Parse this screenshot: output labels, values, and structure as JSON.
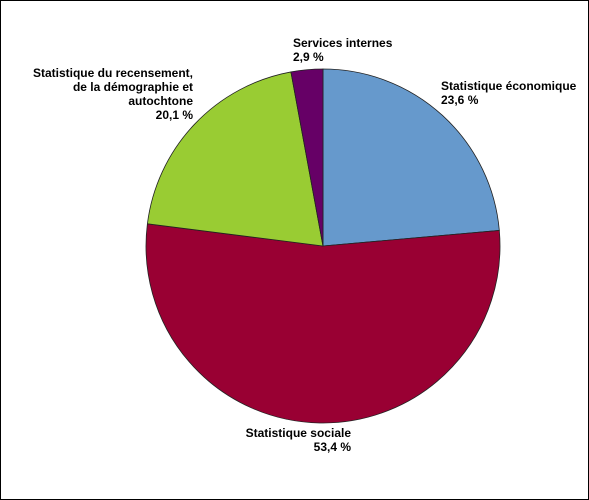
{
  "chart_data": {
    "type": "pie",
    "categories": [
      "Statistique économique",
      "Statistique sociale",
      "Statistique du recensement, de la démographie et autochtone",
      "Services internes"
    ],
    "values": [
      23.6,
      53.4,
      20.1,
      2.9
    ],
    "value_labels": [
      "23,6 %",
      "53,4 %",
      "20,1 %",
      "2,9 %"
    ],
    "colors": [
      "#6699cc",
      "#990033",
      "#99cc33",
      "#660066"
    ]
  }
}
